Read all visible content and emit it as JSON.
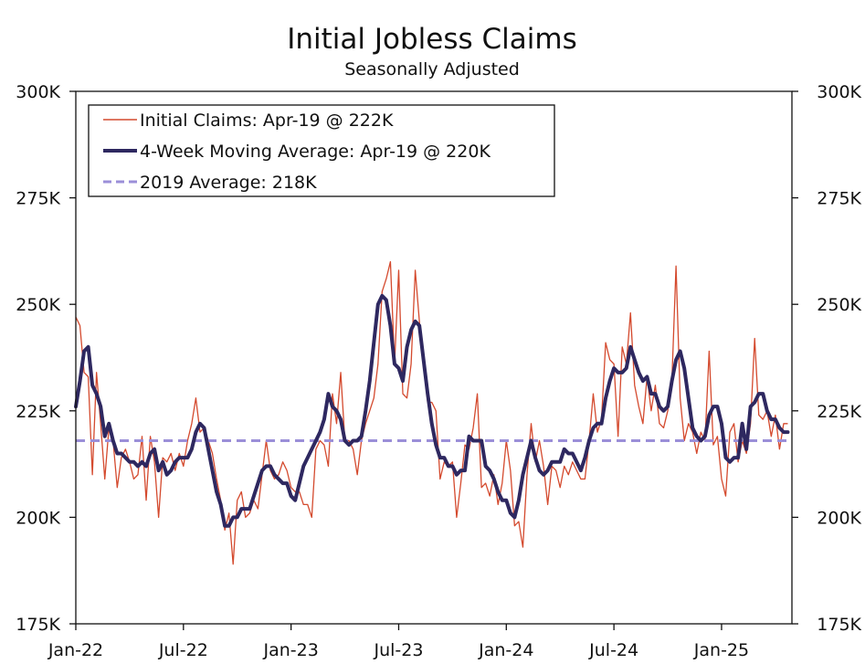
{
  "chart_data": {
    "type": "line",
    "title": "Initial Jobless Claims",
    "subtitle": "Seasonally Adjusted",
    "ylim": [
      175,
      300
    ],
    "yticks": [
      175,
      200,
      225,
      250,
      275,
      300
    ],
    "ytick_labels": [
      "175K",
      "200K",
      "225K",
      "250K",
      "275K",
      "300K"
    ],
    "xlim": [
      0,
      173
    ],
    "xticks": [
      0,
      26,
      52,
      78,
      104,
      130,
      156
    ],
    "xtick_labels": [
      "Jan-22",
      "Jul-22",
      "Jan-23",
      "Jul-23",
      "Jan-24",
      "Jul-24",
      "Jan-25"
    ],
    "colors": {
      "claims": "#d44a2e",
      "ma": "#2e2860",
      "avg": "#9b8fd8"
    },
    "legend": [
      "Initial Claims: Apr-19 @ 222K",
      "4-Week Moving Average: Apr-19 @ 220K",
      "2019 Average: 218K"
    ],
    "series": [
      {
        "name": "Initial Claims",
        "values": [
          247,
          245,
          234,
          233,
          210,
          234,
          222,
          209,
          221,
          218,
          207,
          214,
          216,
          213,
          209,
          210,
          219,
          204,
          219,
          213,
          200,
          214,
          213,
          215,
          211,
          215,
          212,
          218,
          222,
          228,
          220,
          221,
          218,
          215,
          209,
          204,
          197,
          201,
          189,
          204,
          206,
          200,
          201,
          204,
          202,
          210,
          218,
          211,
          209,
          210,
          213,
          211,
          207,
          206,
          206,
          203,
          203,
          200,
          216,
          218,
          217,
          212,
          229,
          222,
          234,
          218,
          218,
          216,
          210,
          218,
          222,
          225,
          228,
          236,
          253,
          256,
          260,
          236,
          258,
          229,
          228,
          236,
          258,
          246,
          236,
          227,
          227,
          225,
          209,
          213,
          212,
          213,
          200,
          208,
          217,
          216,
          221,
          229,
          207,
          208,
          205,
          210,
          203,
          208,
          218,
          211,
          198,
          199,
          193,
          210,
          222,
          213,
          218,
          212,
          203,
          212,
          211,
          207,
          212,
          210,
          213,
          211,
          209,
          209,
          218,
          229,
          220,
          223,
          241,
          237,
          236,
          219,
          240,
          236,
          248,
          231,
          226,
          222,
          233,
          225,
          231,
          222,
          221,
          225,
          232,
          259,
          228,
          218,
          222,
          220,
          215,
          220,
          218,
          239,
          217,
          219,
          209,
          205,
          220,
          222,
          213,
          218,
          215,
          222,
          242,
          224,
          223,
          225,
          219,
          224,
          216,
          222,
          222
        ],
        "color": "#d44a2e"
      },
      {
        "name": "4-Week Moving Average",
        "values": [
          226,
          232,
          239,
          240,
          231,
          229,
          226,
          219,
          222,
          218,
          215,
          215,
          214,
          213,
          213,
          212,
          213,
          212,
          215,
          216,
          211,
          213,
          210,
          211,
          213,
          214,
          214,
          214,
          216,
          220,
          222,
          221,
          216,
          211,
          206,
          203,
          198,
          198,
          200,
          200,
          202,
          202,
          202,
          205,
          208,
          211,
          212,
          212,
          210,
          209,
          208,
          208,
          205,
          204,
          208,
          212,
          214,
          216,
          218,
          220,
          223,
          229,
          226,
          225,
          223,
          218,
          217,
          218,
          218,
          219,
          225,
          232,
          241,
          250,
          252,
          251,
          245,
          236,
          235,
          232,
          240,
          244,
          246,
          245,
          237,
          229,
          222,
          217,
          214,
          214,
          212,
          212,
          210,
          211,
          211,
          219,
          218,
          218,
          218,
          212,
          211,
          209,
          206,
          204,
          204,
          201,
          200,
          204,
          210,
          214,
          218,
          214,
          211,
          210,
          211,
          213,
          213,
          213,
          216,
          215,
          215,
          213,
          211,
          214,
          218,
          221,
          222,
          222,
          228,
          232,
          235,
          234,
          234,
          235,
          240,
          237,
          234,
          232,
          233,
          229,
          229,
          226,
          225,
          226,
          232,
          237,
          239,
          235,
          228,
          221,
          219,
          218,
          219,
          224,
          226,
          226,
          222,
          214,
          213,
          214,
          214,
          222,
          216,
          226,
          227,
          229,
          229,
          225,
          223,
          223,
          221,
          220,
          220
        ],
        "color": "#2e2860"
      },
      {
        "name": "2019 Average",
        "value": 218,
        "color": "#9b8fd8"
      }
    ]
  }
}
